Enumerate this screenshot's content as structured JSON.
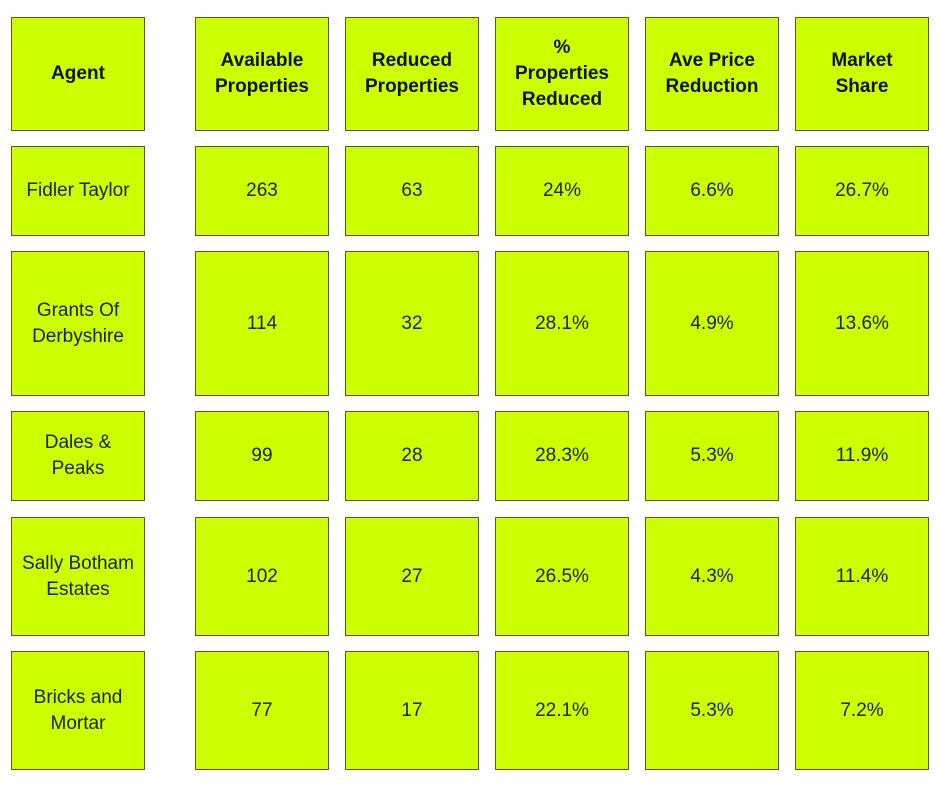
{
  "colors": {
    "cell_fill": "#ccff00",
    "cell_border": "#555a2e",
    "text": "#1f1f1f",
    "page_background": "#ffffff"
  },
  "chart_data": {
    "type": "table",
    "columns": [
      "Agent",
      "Available\nProperties",
      "Reduced\nProperties",
      "%\nProperties\nReduced",
      "Ave Price\nReduction",
      "Market\nShare"
    ],
    "rows": [
      [
        "Fidler Taylor",
        "263",
        "63",
        "24%",
        "6.6%",
        "26.7%"
      ],
      [
        "Grants Of\nDerbyshire",
        "114",
        "32",
        "28.1%",
        "4.9%",
        "13.6%"
      ],
      [
        "Dales & Peaks",
        "99",
        "28",
        "28.3%",
        "5.3%",
        "11.9%"
      ],
      [
        "Sally Botham\nEstates",
        "102",
        "27",
        "26.5%",
        "4.3%",
        "11.4%"
      ],
      [
        "Bricks and\nMortar",
        "77",
        "17",
        "22.1%",
        "5.3%",
        "7.2%"
      ]
    ]
  }
}
